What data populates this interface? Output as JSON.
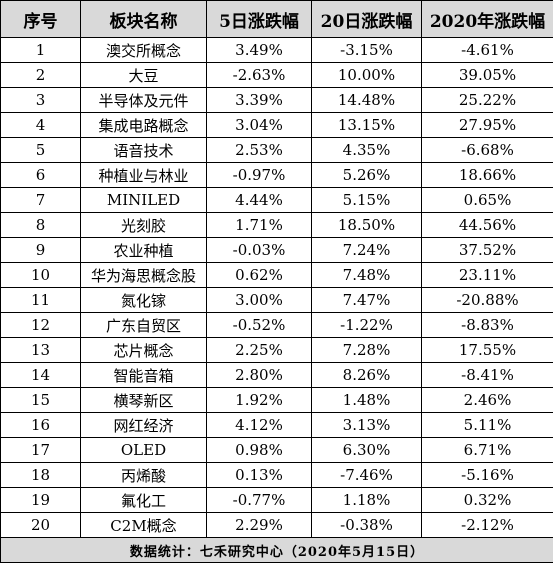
{
  "headers": [
    "序号",
    "板块名称",
    "5日涨跌幅",
    "20日涨跌幅",
    "2020年涨跌幅"
  ],
  "rows": [
    [
      "1",
      "澳交所概念",
      "3.49%",
      "-3.15%",
      "-4.61%"
    ],
    [
      "2",
      "大豆",
      "-2.63%",
      "10.00%",
      "39.05%"
    ],
    [
      "3",
      "半导体及元件",
      "3.39%",
      "14.48%",
      "25.22%"
    ],
    [
      "4",
      "集成电路概念",
      "3.04%",
      "13.15%",
      "27.95%"
    ],
    [
      "5",
      "语音技术",
      "2.53%",
      "4.35%",
      "-6.68%"
    ],
    [
      "6",
      "种植业与林业",
      "-0.97%",
      "5.26%",
      "18.66%"
    ],
    [
      "7",
      "MINILED",
      "4.44%",
      "5.15%",
      "0.65%"
    ],
    [
      "8",
      "光刻胶",
      "1.71%",
      "18.50%",
      "44.56%"
    ],
    [
      "9",
      "农业种植",
      "-0.03%",
      "7.24%",
      "37.52%"
    ],
    [
      "10",
      "华为海思概念股",
      "0.62%",
      "7.48%",
      "23.11%"
    ],
    [
      "11",
      "氮化镓",
      "3.00%",
      "7.47%",
      "-20.88%"
    ],
    [
      "12",
      "广东自贸区",
      "-0.52%",
      "-1.22%",
      "-8.83%"
    ],
    [
      "13",
      "芯片概念",
      "2.25%",
      "7.28%",
      "17.55%"
    ],
    [
      "14",
      "智能音箱",
      "2.80%",
      "8.26%",
      "-8.41%"
    ],
    [
      "15",
      "横琴新区",
      "1.92%",
      "1.48%",
      "2.46%"
    ],
    [
      "16",
      "网红经济",
      "4.12%",
      "3.13%",
      "5.11%"
    ],
    [
      "17",
      "OLED",
      "0.98%",
      "6.30%",
      "6.71%"
    ],
    [
      "18",
      "丙烯酸",
      "0.13%",
      "-7.46%",
      "-5.16%"
    ],
    [
      "19",
      "氟化工",
      "-0.77%",
      "1.18%",
      "0.32%"
    ],
    [
      "20",
      "C2M概念",
      "2.29%",
      "-0.38%",
      "-2.12%"
    ]
  ],
  "footer": "数据统计：七禾研究中心（2020年5月15日）",
  "colors": {
    "header_bg": "#d9d9d9",
    "footer_bg": "#d9d9d9",
    "border": "#000000"
  }
}
